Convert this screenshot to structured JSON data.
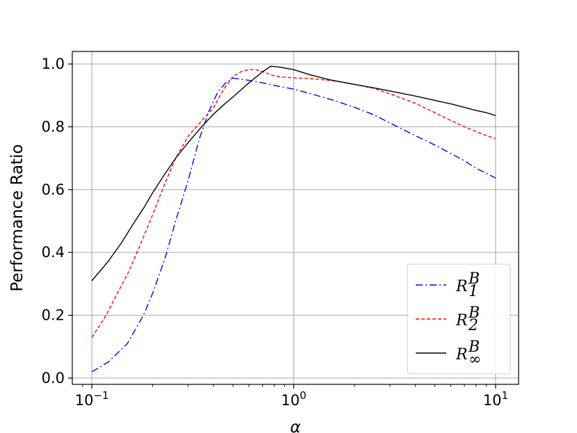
{
  "chart_data": {
    "type": "line",
    "xscale": "log",
    "xlabel": "α",
    "ylabel": "Performance Ratio",
    "xlim": [
      0.08,
      13
    ],
    "ylim": [
      -0.02,
      1.04
    ],
    "grid": true,
    "legend_position": "bottom-right",
    "x_ticks": [
      {
        "value": 0.1,
        "base": "10",
        "exp": "−1"
      },
      {
        "value": 1,
        "base": "10",
        "exp": "0"
      },
      {
        "value": 10,
        "base": "10",
        "exp": "1"
      }
    ],
    "y_ticks": [
      {
        "value": 0.0,
        "label": "0.0"
      },
      {
        "value": 0.2,
        "label": "0.2"
      },
      {
        "value": 0.4,
        "label": "0.4"
      },
      {
        "value": 0.6,
        "label": "0.6"
      },
      {
        "value": 0.8,
        "label": "0.8"
      },
      {
        "value": 1.0,
        "label": "1.0"
      }
    ],
    "series": [
      {
        "name_main": "R",
        "name_sup": "B",
        "name_sub": "1",
        "color": "#0000ff",
        "dash": "10 4 2 4",
        "points": [
          [
            0.1,
            0.02
          ],
          [
            0.12,
            0.05
          ],
          [
            0.15,
            0.11
          ],
          [
            0.18,
            0.2
          ],
          [
            0.2,
            0.27
          ],
          [
            0.23,
            0.38
          ],
          [
            0.26,
            0.5
          ],
          [
            0.3,
            0.63
          ],
          [
            0.34,
            0.76
          ],
          [
            0.38,
            0.85
          ],
          [
            0.42,
            0.91
          ],
          [
            0.46,
            0.94
          ],
          [
            0.5,
            0.955
          ],
          [
            0.6,
            0.948
          ],
          [
            0.7,
            0.94
          ],
          [
            0.8,
            0.932
          ],
          [
            1.0,
            0.92
          ],
          [
            1.3,
            0.9
          ],
          [
            1.6,
            0.883
          ],
          [
            2.0,
            0.862
          ],
          [
            2.5,
            0.838
          ],
          [
            3.0,
            0.812
          ],
          [
            4.0,
            0.772
          ],
          [
            5.0,
            0.742
          ],
          [
            6.0,
            0.715
          ],
          [
            7.0,
            0.692
          ],
          [
            8.0,
            0.668
          ],
          [
            9.0,
            0.652
          ],
          [
            10,
            0.637
          ]
        ]
      },
      {
        "name_main": "R",
        "name_sup": "B",
        "name_sub": "2",
        "color": "#ff0000",
        "dash": "5 3",
        "points": [
          [
            0.1,
            0.13
          ],
          [
            0.11,
            0.17
          ],
          [
            0.12,
            0.21
          ],
          [
            0.13,
            0.255
          ],
          [
            0.15,
            0.33
          ],
          [
            0.17,
            0.41
          ],
          [
            0.2,
            0.52
          ],
          [
            0.23,
            0.62
          ],
          [
            0.26,
            0.7
          ],
          [
            0.3,
            0.77
          ],
          [
            0.35,
            0.82
          ],
          [
            0.4,
            0.86
          ],
          [
            0.45,
            0.92
          ],
          [
            0.5,
            0.96
          ],
          [
            0.55,
            0.976
          ],
          [
            0.6,
            0.982
          ],
          [
            0.65,
            0.982
          ],
          [
            0.7,
            0.976
          ],
          [
            0.8,
            0.962
          ],
          [
            0.9,
            0.958
          ],
          [
            1.0,
            0.956
          ],
          [
            1.3,
            0.952
          ],
          [
            1.6,
            0.946
          ],
          [
            2.0,
            0.935
          ],
          [
            2.5,
            0.922
          ],
          [
            3.0,
            0.905
          ],
          [
            4.0,
            0.875
          ],
          [
            5.0,
            0.845
          ],
          [
            6.0,
            0.82
          ],
          [
            7.0,
            0.8
          ],
          [
            8.0,
            0.785
          ],
          [
            9.0,
            0.772
          ],
          [
            10,
            0.763
          ]
        ]
      },
      {
        "name_main": "R",
        "name_sup": "B",
        "name_sub": "∞",
        "color": "#000000",
        "dash": "",
        "points": [
          [
            0.1,
            0.31
          ],
          [
            0.12,
            0.37
          ],
          [
            0.14,
            0.43
          ],
          [
            0.16,
            0.49
          ],
          [
            0.18,
            0.54
          ],
          [
            0.2,
            0.59
          ],
          [
            0.23,
            0.65
          ],
          [
            0.26,
            0.7
          ],
          [
            0.3,
            0.75
          ],
          [
            0.35,
            0.8
          ],
          [
            0.4,
            0.84
          ],
          [
            0.45,
            0.87
          ],
          [
            0.5,
            0.895
          ],
          [
            0.6,
            0.94
          ],
          [
            0.7,
            0.975
          ],
          [
            0.77,
            0.993
          ],
          [
            0.85,
            0.99
          ],
          [
            1.0,
            0.982
          ],
          [
            1.2,
            0.966
          ],
          [
            1.5,
            0.95
          ],
          [
            2.0,
            0.935
          ],
          [
            2.5,
            0.924
          ],
          [
            3.0,
            0.914
          ],
          [
            4.0,
            0.898
          ],
          [
            5.0,
            0.884
          ],
          [
            6.0,
            0.873
          ],
          [
            7.0,
            0.862
          ],
          [
            8.0,
            0.852
          ],
          [
            9.0,
            0.845
          ],
          [
            10,
            0.836
          ]
        ]
      }
    ]
  }
}
